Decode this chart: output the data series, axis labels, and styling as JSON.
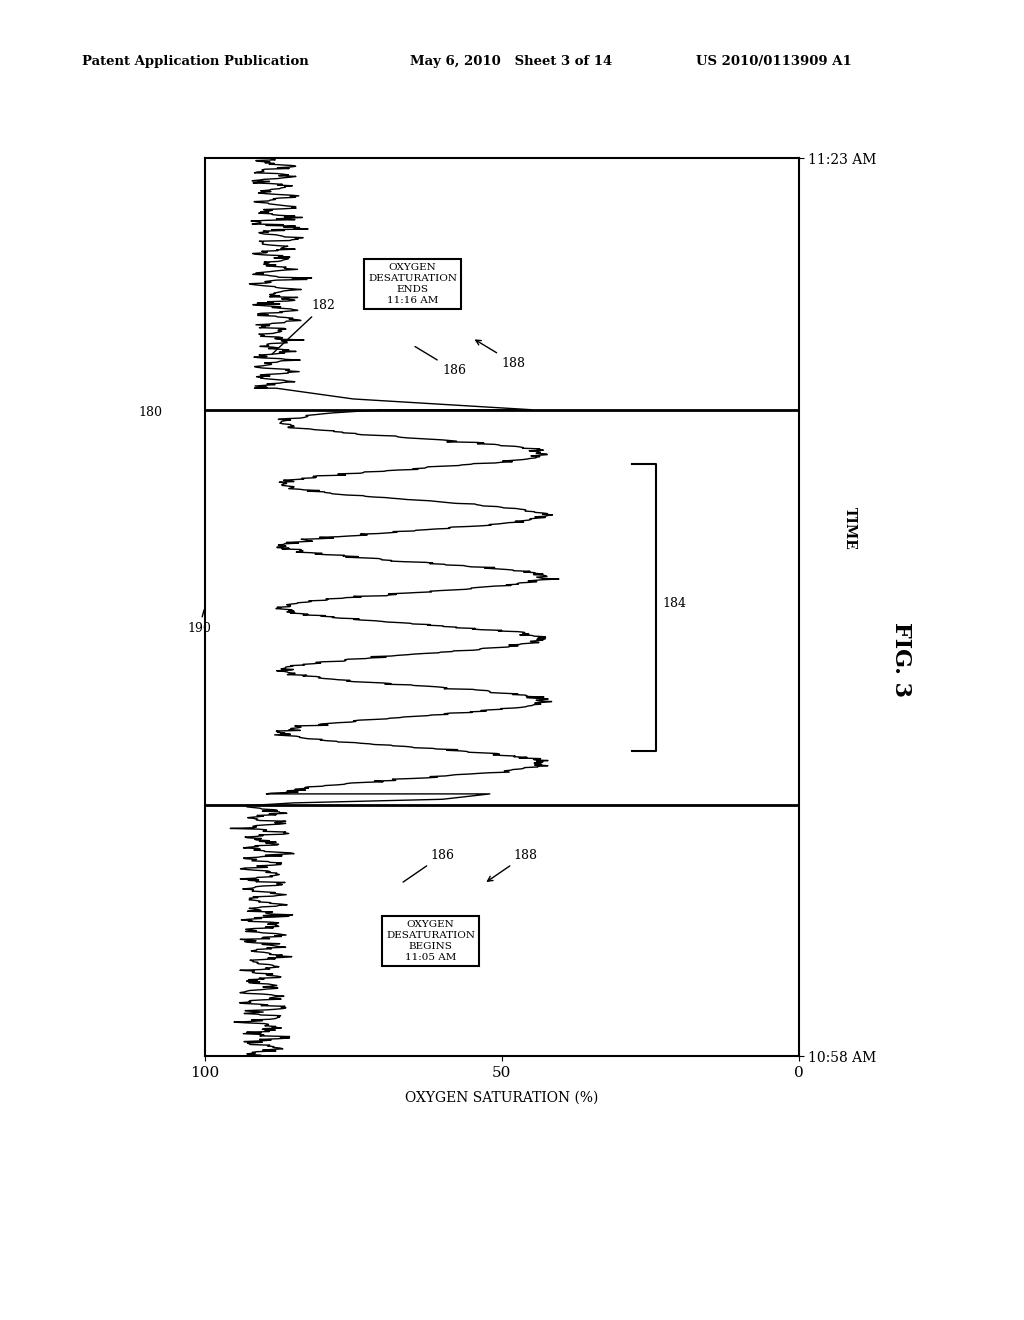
{
  "header_left": "Patent Application Publication",
  "header_center": "May 6, 2010   Sheet 3 of 14",
  "header_right": "US 2010/0113909 A1",
  "fig_label": "FIG. 3",
  "time_label": "TIME",
  "ylabel": "OXYGEN SATURATION (%)",
  "time_bottom": "10:58 AM",
  "time_top": "11:23 AM",
  "ref_180": "180",
  "ref_182": "182",
  "ref_184": "184",
  "ref_186a": "186",
  "ref_186b": "186",
  "ref_188a": "188",
  "ref_188b": "188",
  "ref_190": "190",
  "box1_text": "OXYGEN\nDESATURATION\nBEGINS\n11:05 AM",
  "box2_text": "OXYGEN\nDESATURATION\nENDS\n11:16 AM",
  "background_color": "#ffffff",
  "line_color": "#000000"
}
